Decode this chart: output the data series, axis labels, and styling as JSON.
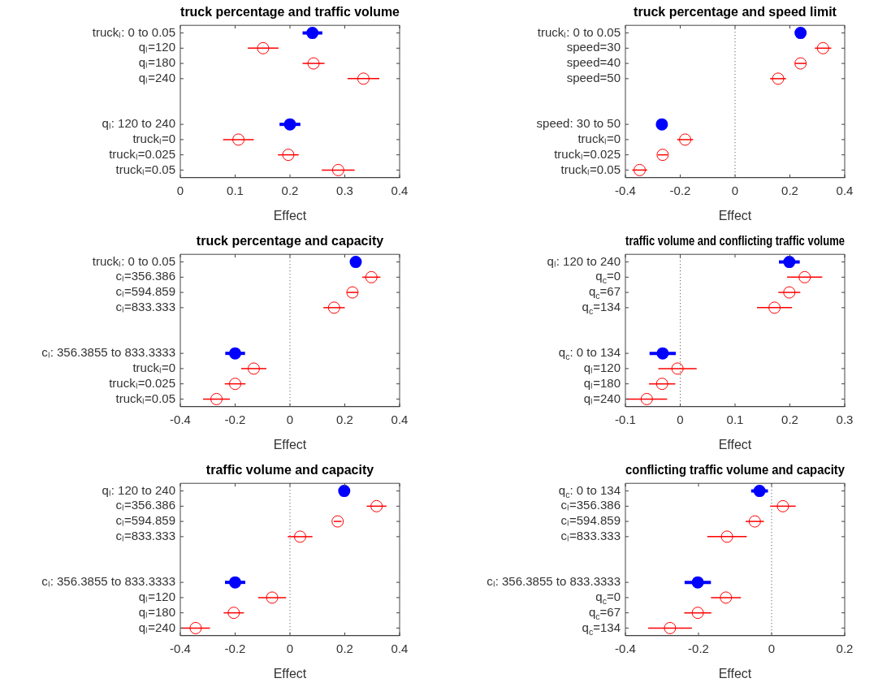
{
  "chart_data": [
    {
      "type": "scatter",
      "orientation": "horizontal",
      "title": "truck percentage and traffic volume",
      "xlabel": "Effect",
      "marker": "circle",
      "categories": [
        "truckₗ: 0 to 0.05",
        "qₗ=120",
        "qₗ=180",
        "qₗ=240",
        null,
        null,
        "qₗ: 120 to 240",
        "truckₗ=0",
        "truckₗ=0.025",
        "truckₗ=0.05"
      ],
      "xlim": [
        0,
        0.4
      ],
      "xticks": [
        0,
        0.1,
        0.2,
        0.3,
        0.4
      ],
      "series": [
        {
          "color": "#0000ff",
          "values": [
            0.241,
            null,
            null,
            null,
            null,
            null,
            0.2,
            null,
            null,
            null
          ],
          "errors": [
            0.018,
            null,
            null,
            null,
            null,
            null,
            0.019,
            null,
            null,
            null
          ]
        },
        {
          "color": "#ff0000",
          "values": [
            null,
            0.151,
            0.243,
            0.334,
            null,
            null,
            null,
            0.106,
            0.197,
            0.288
          ],
          "errors": [
            null,
            0.028,
            0.02,
            0.029,
            null,
            null,
            null,
            0.028,
            0.019,
            0.03
          ]
        }
      ]
    },
    {
      "type": "scatter",
      "orientation": "horizontal",
      "title": "truck percentage and speed limit",
      "xlabel": "Effect",
      "marker": "circle",
      "categories": [
        "truckₗ: 0 to 0.05",
        "speed=30",
        "speed=40",
        "speed=50",
        null,
        null,
        "speed: 30 to 50",
        "truckₗ=0",
        "truckₗ=0.025",
        "truckₗ=0.05"
      ],
      "xlim": [
        -0.4,
        0.4
      ],
      "xticks": [
        -0.4,
        -0.2,
        0,
        0.2,
        0.4
      ],
      "ref_lines": [
        {
          "axis": "x",
          "value": 0,
          "line_style": "dotted"
        }
      ],
      "series": [
        {
          "color": "#0000ff",
          "values": [
            0.239,
            null,
            null,
            null,
            null,
            null,
            -0.267,
            null,
            null,
            null
          ]
        },
        {
          "color": "#ff0000",
          "values": [
            null,
            0.321,
            0.239,
            0.157,
            null,
            null,
            null,
            -0.182,
            -0.264,
            -0.348
          ],
          "errors": [
            null,
            0.03,
            0.02,
            0.029,
            null,
            null,
            null,
            0.029,
            0.018,
            0.027
          ]
        }
      ]
    },
    {
      "type": "scatter",
      "orientation": "horizontal",
      "title": "truck percentage and capacity",
      "xlabel": "Effect",
      "marker": "circle",
      "categories": [
        "truckₗ: 0 to 0.05",
        "cₗ=356.386",
        "cₗ=594.859",
        "cₗ=833.333",
        null,
        null,
        "cₗ: 356.3855 to 833.3333",
        "truckₗ=0",
        "truckₗ=0.025",
        "truckₗ=0.05"
      ],
      "xlim": [
        -0.4,
        0.4
      ],
      "xticks": [
        -0.4,
        -0.2,
        0,
        0.2,
        0.4
      ],
      "ref_lines": [
        {
          "axis": "x",
          "value": 0,
          "line_style": "dotted"
        }
      ],
      "series": [
        {
          "color": "#0000ff",
          "values": [
            0.24,
            null,
            null,
            null,
            null,
            null,
            -0.2,
            null,
            null,
            null
          ],
          "errors": [
            null,
            null,
            null,
            null,
            null,
            null,
            0.036,
            null,
            null,
            null
          ]
        },
        {
          "color": "#ff0000",
          "values": [
            null,
            0.297,
            0.228,
            0.161,
            null,
            null,
            null,
            -0.132,
            -0.2,
            -0.268
          ],
          "errors": [
            null,
            0.033,
            0.02,
            0.039,
            null,
            null,
            null,
            0.046,
            0.038,
            0.049
          ]
        }
      ]
    },
    {
      "type": "scatter",
      "orientation": "horizontal",
      "title": "traffic volume and conflicting traffic volume",
      "xlabel": "Effect",
      "marker": "circle",
      "categories": [
        "qₗ: 120 to 240",
        "q$_{c}$=0",
        "q$_{c}$=67",
        "q$_{c}$=134",
        null,
        null,
        "q$_{c}$: 0 to 134",
        "qₗ=120",
        "qₗ=180",
        "qₗ=240"
      ],
      "xlim": [
        -0.1,
        0.3
      ],
      "xticks": [
        -0.1,
        0,
        0.1,
        0.2,
        0.3
      ],
      "ref_lines": [
        {
          "axis": "x",
          "value": 0,
          "line_style": "dotted"
        }
      ],
      "series": [
        {
          "color": "#0000ff",
          "values": [
            0.199,
            null,
            null,
            null,
            null,
            null,
            -0.032,
            null,
            null,
            null
          ],
          "errors": [
            0.019,
            null,
            null,
            null,
            null,
            null,
            0.024,
            null,
            null,
            null
          ]
        },
        {
          "color": "#ff0000",
          "values": [
            null,
            0.227,
            0.199,
            0.172,
            null,
            null,
            null,
            -0.005,
            -0.033,
            -0.061
          ],
          "errors": [
            null,
            0.032,
            0.02,
            0.032,
            null,
            null,
            null,
            0.035,
            0.024,
            0.037
          ]
        }
      ]
    },
    {
      "type": "scatter",
      "orientation": "horizontal",
      "title": "traffic volume and capacity",
      "xlabel": "Effect",
      "marker": "circle",
      "categories": [
        "qₗ: 120 to 240",
        "cₗ=356.386",
        "cₗ=594.859",
        "cₗ=833.333",
        null,
        null,
        "cₗ: 356.3855 to 833.3333",
        "qₗ=120",
        "qₗ=180",
        "qₗ=240"
      ],
      "xlim": [
        -0.4,
        0.4
      ],
      "xticks": [
        -0.4,
        -0.2,
        0,
        0.2,
        0.4
      ],
      "ref_lines": [
        {
          "axis": "x",
          "value": 0,
          "line_style": "dotted"
        }
      ],
      "series": [
        {
          "color": "#0000ff",
          "values": [
            0.198,
            null,
            null,
            null,
            null,
            null,
            -0.2,
            null,
            null,
            null
          ],
          "errors": [
            null,
            null,
            null,
            null,
            null,
            null,
            0.037,
            null,
            null,
            null
          ]
        },
        {
          "color": "#ff0000",
          "values": [
            null,
            0.316,
            0.174,
            0.037,
            null,
            null,
            null,
            -0.065,
            -0.205,
            -0.344
          ],
          "errors": [
            null,
            0.036,
            0.014,
            0.045,
            null,
            null,
            null,
            0.051,
            0.037,
            0.052
          ]
        }
      ]
    },
    {
      "type": "scatter",
      "orientation": "horizontal",
      "title": "conflicting traffic volume and capacity",
      "xlabel": "Effect",
      "marker": "circle",
      "categories": [
        "q$_{c}$: 0 to 134",
        "cₗ=356.386",
        "cₗ=594.859",
        "cₗ=833.333",
        null,
        null,
        "cₗ: 356.3855 to 833.3333",
        "q$_{c}$=0",
        "q$_{c}$=67",
        "q$_{c}$=134"
      ],
      "xlim": [
        -0.4,
        0.2
      ],
      "xticks": [
        -0.4,
        -0.2,
        0,
        0.2
      ],
      "ref_lines": [
        {
          "axis": "x",
          "value": 0,
          "line_style": "dotted"
        }
      ],
      "series": [
        {
          "color": "#0000ff",
          "values": [
            -0.033,
            null,
            null,
            null,
            null,
            null,
            -0.202,
            null,
            null,
            null
          ],
          "errors": [
            0.023,
            null,
            null,
            null,
            null,
            null,
            0.036,
            null,
            null,
            null
          ]
        },
        {
          "color": "#ff0000",
          "values": [
            null,
            0.031,
            -0.046,
            -0.122,
            null,
            null,
            null,
            -0.125,
            -0.202,
            -0.278
          ],
          "errors": [
            null,
            0.035,
            0.025,
            0.054,
            null,
            null,
            null,
            0.041,
            0.037,
            0.06
          ]
        }
      ]
    }
  ]
}
